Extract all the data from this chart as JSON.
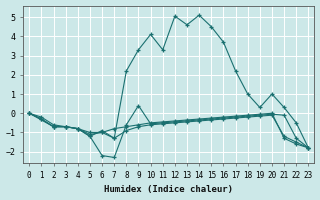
{
  "xlabel": "Humidex (Indice chaleur)",
  "background_color": "#cce8e8",
  "line_color": "#1a7070",
  "grid_color": "#ffffff",
  "xlim": [
    -0.5,
    23.5
  ],
  "ylim": [
    -2.6,
    5.6
  ],
  "yticks": [
    -2,
    -1,
    0,
    1,
    2,
    3,
    4,
    5
  ],
  "xticks": [
    0,
    1,
    2,
    3,
    4,
    5,
    6,
    7,
    8,
    9,
    10,
    11,
    12,
    13,
    14,
    15,
    16,
    17,
    18,
    19,
    20,
    21,
    22,
    23
  ],
  "series": [
    {
      "x": [
        0,
        2,
        3,
        4,
        5,
        6,
        7,
        8,
        9,
        10,
        11,
        12,
        13,
        14,
        15,
        16,
        17,
        18,
        19,
        20,
        21,
        22,
        23
      ],
      "y": [
        0.0,
        -0.7,
        -0.7,
        -0.8,
        -1.2,
        -0.9,
        -1.3,
        2.2,
        3.3,
        4.1,
        3.3,
        5.05,
        4.6,
        5.1,
        4.5,
        3.7,
        2.2,
        1.0,
        0.3,
        1.0,
        0.3,
        -0.5,
        -1.8
      ]
    },
    {
      "x": [
        0,
        1,
        2,
        3,
        4,
        5,
        6,
        7,
        8,
        9,
        10,
        11,
        12,
        13,
        14,
        15,
        16,
        17,
        18,
        19,
        20,
        21,
        22,
        23
      ],
      "y": [
        0.0,
        -0.3,
        -0.7,
        -0.7,
        -0.8,
        -1.1,
        -1.0,
        -0.8,
        -0.7,
        -0.6,
        -0.5,
        -0.45,
        -0.4,
        -0.35,
        -0.3,
        -0.25,
        -0.2,
        -0.15,
        -0.1,
        -0.05,
        0.0,
        -1.3,
        -1.6,
        -1.8
      ]
    },
    {
      "x": [
        0,
        1,
        2,
        3,
        4,
        5,
        6,
        7,
        8,
        9,
        10,
        11,
        12,
        13,
        14,
        15,
        16,
        17,
        18,
        19,
        20,
        21,
        22,
        23
      ],
      "y": [
        0.0,
        -0.3,
        -0.7,
        -0.7,
        -0.8,
        -1.2,
        -2.2,
        -2.3,
        -0.6,
        0.4,
        -0.55,
        -0.5,
        -0.45,
        -0.4,
        -0.35,
        -0.3,
        -0.25,
        -0.2,
        -0.15,
        -0.1,
        -0.05,
        -0.1,
        -1.3,
        -1.8
      ]
    },
    {
      "x": [
        0,
        1,
        2,
        3,
        4,
        5,
        6,
        7,
        8,
        9,
        10,
        11,
        12,
        13,
        14,
        15,
        16,
        17,
        18,
        19,
        20,
        21,
        22,
        23
      ],
      "y": [
        0.0,
        -0.2,
        -0.6,
        -0.7,
        -0.8,
        -1.0,
        -1.0,
        -1.3,
        -0.9,
        -0.7,
        -0.6,
        -0.55,
        -0.5,
        -0.45,
        -0.4,
        -0.35,
        -0.3,
        -0.25,
        -0.2,
        -0.15,
        -0.1,
        -1.2,
        -1.5,
        -1.8
      ]
    }
  ]
}
